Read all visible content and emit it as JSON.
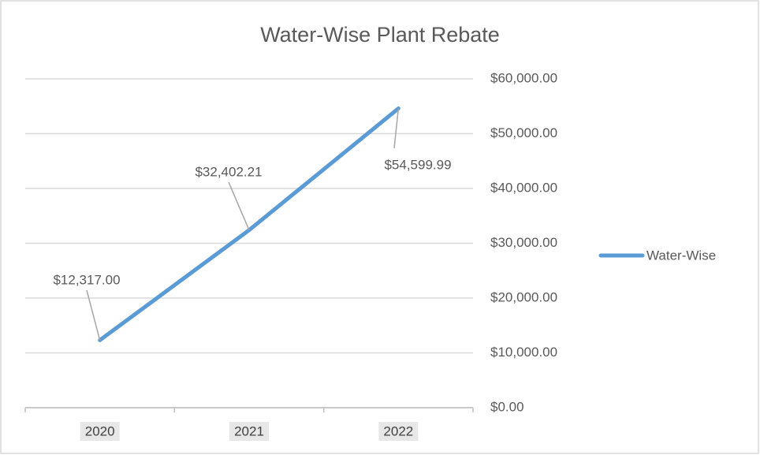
{
  "chart_data": {
    "type": "line",
    "title": "Water-Wise Plant Rebate",
    "categories": [
      "2020",
      "2021",
      "2022"
    ],
    "series": [
      {
        "name": "Water-Wise",
        "color": "#5b9bd5",
        "values": [
          12317,
          32402.21,
          54599.99
        ],
        "value_labels": [
          "$12,317.00",
          "$32,402.21",
          "$54,599.99"
        ]
      }
    ],
    "ylim": [
      0,
      60000
    ],
    "yticks": [
      {
        "value": 0,
        "label": "$0.00"
      },
      {
        "value": 10000,
        "label": "$10,000.00"
      },
      {
        "value": 20000,
        "label": "$20,000.00"
      },
      {
        "value": 30000,
        "label": "$30,000.00"
      },
      {
        "value": 40000,
        "label": "$40,000.00"
      },
      {
        "value": 50000,
        "label": "$50,000.00"
      },
      {
        "value": 60000,
        "label": "$60,000.00"
      }
    ],
    "grid": true,
    "legend": "right"
  }
}
